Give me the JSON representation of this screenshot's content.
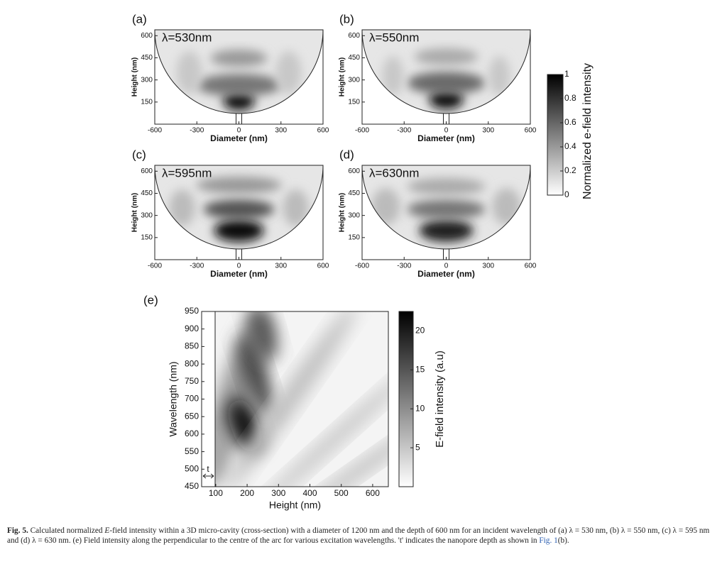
{
  "panels": [
    {
      "label": "(a)",
      "annotation": "λ=530nm",
      "x_label": "Diameter (nm)",
      "y_label": "Height (nm)",
      "xlim": [
        -600,
        600
      ],
      "ylim": [
        0,
        640
      ],
      "xticks": [
        -600,
        -300,
        0,
        300,
        600
      ],
      "yticks": [
        150,
        300,
        450,
        600
      ]
    },
    {
      "label": "(b)",
      "annotation": "λ=550nm",
      "x_label": "Diameter (nm)",
      "y_label": "Height (nm)",
      "xlim": [
        -600,
        600
      ],
      "ylim": [
        0,
        640
      ],
      "xticks": [
        -600,
        -300,
        0,
        300,
        600
      ],
      "yticks": [
        150,
        300,
        450,
        600
      ]
    },
    {
      "label": "(c)",
      "annotation": "λ=595nm",
      "x_label": "Diameter (nm)",
      "y_label": "Height (nm)",
      "xlim": [
        -600,
        600
      ],
      "ylim": [
        0,
        640
      ],
      "xticks": [
        -600,
        -300,
        0,
        300,
        600
      ],
      "yticks": [
        150,
        300,
        450,
        600
      ]
    },
    {
      "label": "(d)",
      "annotation": "λ=630nm",
      "x_label": "Diameter (nm)",
      "y_label": "Height (nm)",
      "xlim": [
        -600,
        600
      ],
      "ylim": [
        0,
        640
      ],
      "xticks": [
        -600,
        -300,
        0,
        300,
        600
      ],
      "yticks": [
        150,
        300,
        450,
        600
      ]
    }
  ],
  "colorbar": {
    "label": "Normalized e-field intensity",
    "lim": [
      0,
      1
    ],
    "ticks": [
      0,
      0.2,
      0.4,
      0.6,
      0.8,
      1
    ]
  },
  "panel_e": {
    "label": "(e)",
    "x_label": "Height  (nm)",
    "y_label": "Wavelength (nm)",
    "annotation": "t",
    "xlim": [
      55,
      650
    ],
    "ylim": [
      450,
      950
    ],
    "xticks": [
      100,
      200,
      300,
      400,
      500,
      600
    ],
    "yticks": [
      450,
      500,
      550,
      600,
      650,
      700,
      750,
      800,
      850,
      900,
      950
    ],
    "colorbar_label": "E-field intensity (a.u)",
    "colorbar_lim": [
      0,
      22.5
    ],
    "colorbar_ticks": [
      5,
      10,
      15,
      20
    ]
  },
  "caption": {
    "label": "Fig. 5.",
    "text_1": " Calculated normalized ",
    "italic": "E",
    "text_2": "-field intensity within a 3D micro-cavity (cross-section) with a diameter of 1200 nm and the depth of 600 nm for an incident wavelength of (a) λ = 530 nm, (b) λ = 550 nm, (c) λ = 595 nm and (d) λ = 630 nm. (e) Field intensity along the perpendicular to the centre of the arc for various excitation wavelengths. 't' indicates the nanopore depth as shown in ",
    "link": "Fig. 1",
    "text_3": "(b)."
  }
}
